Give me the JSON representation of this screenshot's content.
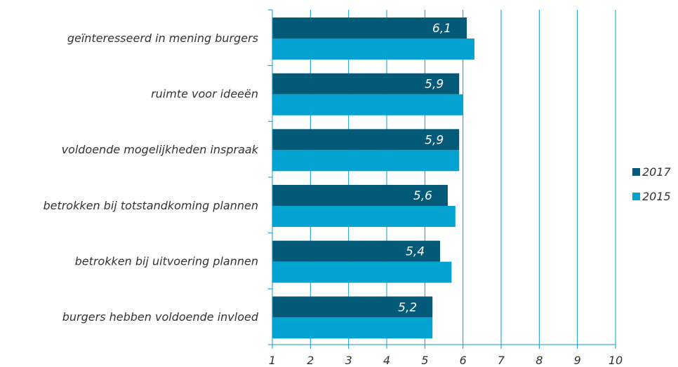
{
  "chart_data": {
    "type": "bar",
    "orientation": "horizontal",
    "categories": [
      "geïnteresseerd in mening burgers",
      "ruimte voor ideeën",
      "voldoende mogelijkheden inspraak",
      "betrokken bij totstandkoming plannen",
      "betrokken bij uitvoering plannen",
      "burgers hebben voldoende invloed"
    ],
    "series": [
      {
        "name": "2017",
        "color": "#035a78",
        "values": [
          6.1,
          5.9,
          5.9,
          5.6,
          5.4,
          5.2
        ],
        "data_labels": [
          "6,1",
          "5,9",
          "5,9",
          "5,6",
          "5,4",
          "5,2"
        ]
      },
      {
        "name": "2015",
        "color": "#04a2d1",
        "values": [
          6.3,
          6.0,
          5.9,
          5.8,
          5.7,
          5.2
        ]
      }
    ],
    "xlim": [
      1,
      10
    ],
    "x_ticks": [
      "1",
      "2",
      "3",
      "4",
      "5",
      "6",
      "7",
      "8",
      "9",
      "10"
    ],
    "grid": true,
    "legend_position": "right"
  }
}
